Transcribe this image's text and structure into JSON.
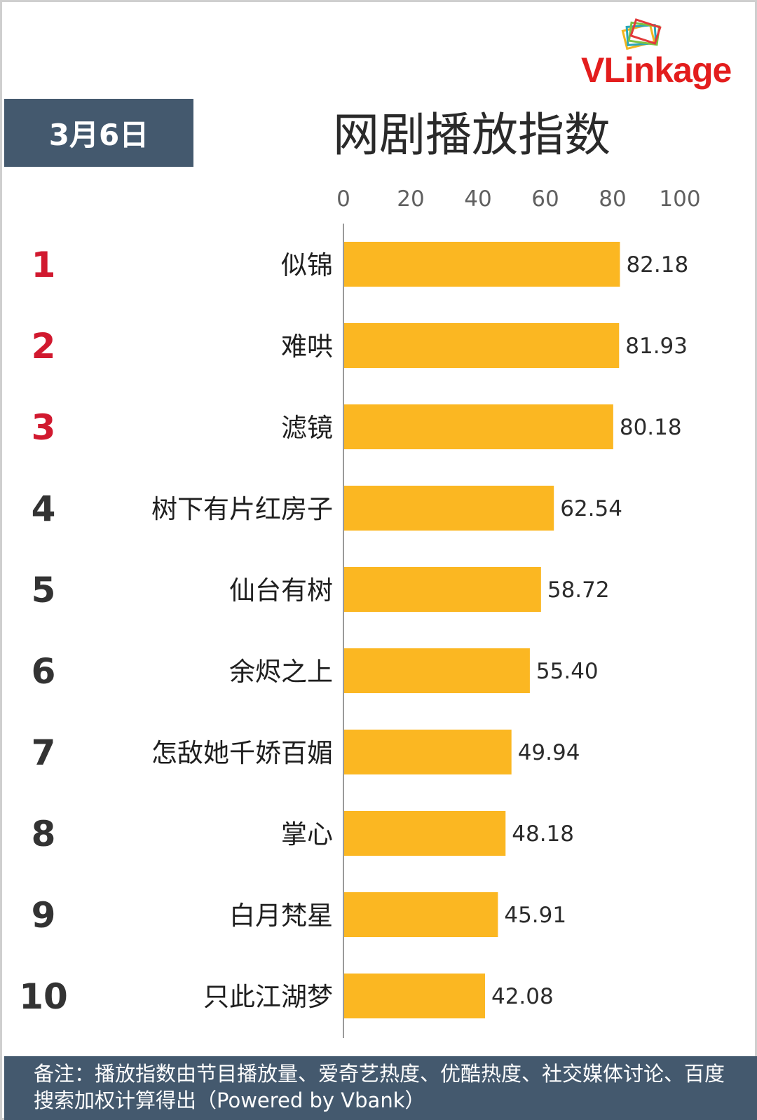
{
  "brand": {
    "logo_text": "VLinkage"
  },
  "header": {
    "date": "3月6日"
  },
  "chart_data": {
    "type": "bar",
    "orientation": "horizontal",
    "title": "网剧播放指数",
    "xlim": [
      0,
      100
    ],
    "ticks": [
      0,
      20,
      40,
      60,
      80,
      100
    ],
    "tick_labels": [
      "0",
      "20",
      "40",
      "60",
      "80",
      "100"
    ],
    "ranks": [
      "1",
      "2",
      "3",
      "4",
      "5",
      "6",
      "7",
      "8",
      "9",
      "10"
    ],
    "categories": [
      "似锦",
      "难哄",
      "滤镜",
      "树下有片红房子",
      "仙台有树",
      "余烬之上",
      "怎敌她千娇百媚",
      "掌心",
      "白月梵星",
      "只此江湖梦"
    ],
    "values": [
      82.18,
      81.93,
      80.18,
      62.54,
      58.72,
      55.4,
      49.94,
      48.18,
      45.91,
      42.08
    ],
    "value_labels": [
      "82.18",
      "81.93",
      "80.18",
      "62.54",
      "58.72",
      "55.40",
      "49.94",
      "48.18",
      "45.91",
      "42.08"
    ],
    "grid": false,
    "legend": "none"
  },
  "colors": {
    "bar": "#fbb722",
    "rank_top": "#d1192f",
    "rank_other": "#333333",
    "header_bg": "#44596e",
    "axis": "#9a9a9a"
  },
  "footer": {
    "note": "备注：播放指数由节目播放量、爱奇艺热度、优酷热度、社交媒体讨论、百度搜索加权计算得出（Powered by Vbank）"
  }
}
